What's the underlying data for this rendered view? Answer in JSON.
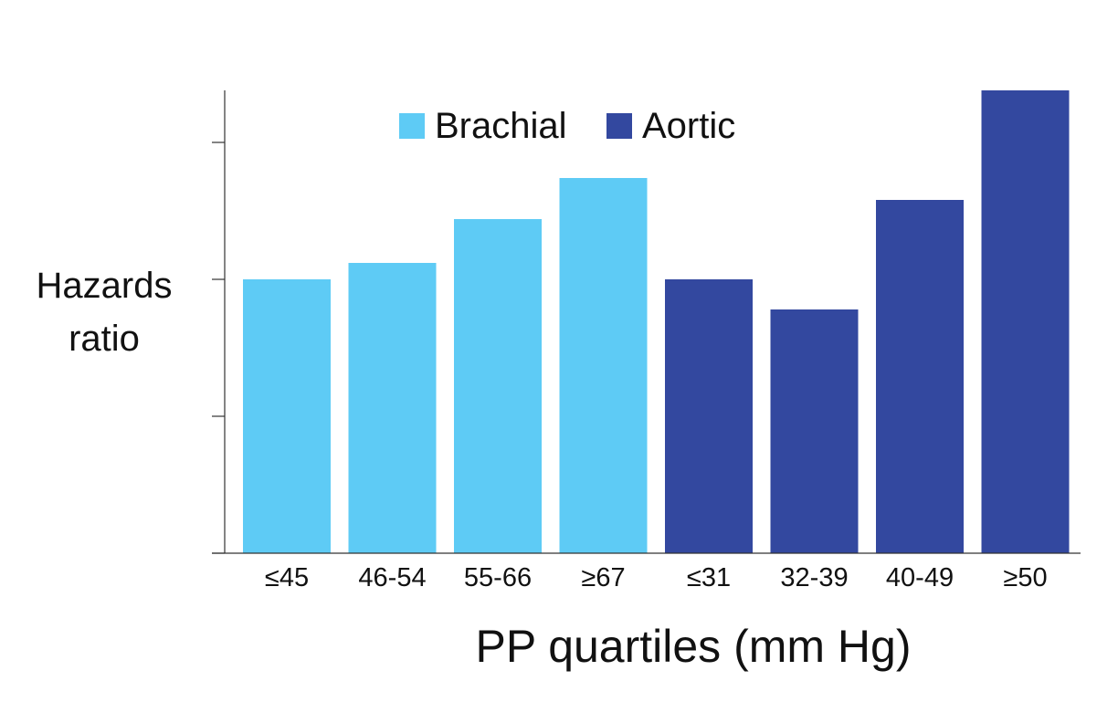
{
  "chart_data": {
    "type": "bar",
    "categories": [
      "≤45",
      "46-54",
      "55-66",
      "≥67",
      "≤31",
      "32-39",
      "40-49",
      "≥50"
    ],
    "series": [
      {
        "name": "Brachial",
        "color": "#5ecbf5",
        "values": [
          1.0,
          1.06,
          1.22,
          1.37,
          null,
          null,
          null,
          null
        ]
      },
      {
        "name": "Aortic",
        "color": "#33489f",
        "values": [
          null,
          null,
          null,
          null,
          1.0,
          0.89,
          1.29,
          1.69
        ]
      }
    ],
    "xlabel": "PP quartiles (mm Hg)",
    "ylabel_lines": [
      "Hazards",
      "ratio"
    ],
    "ylim": [
      0,
      1.69
    ],
    "y_ticks": [
      0,
      0.5,
      1.0,
      1.5
    ],
    "grid": false,
    "legend_position": "top",
    "axis_color": "#333333"
  }
}
